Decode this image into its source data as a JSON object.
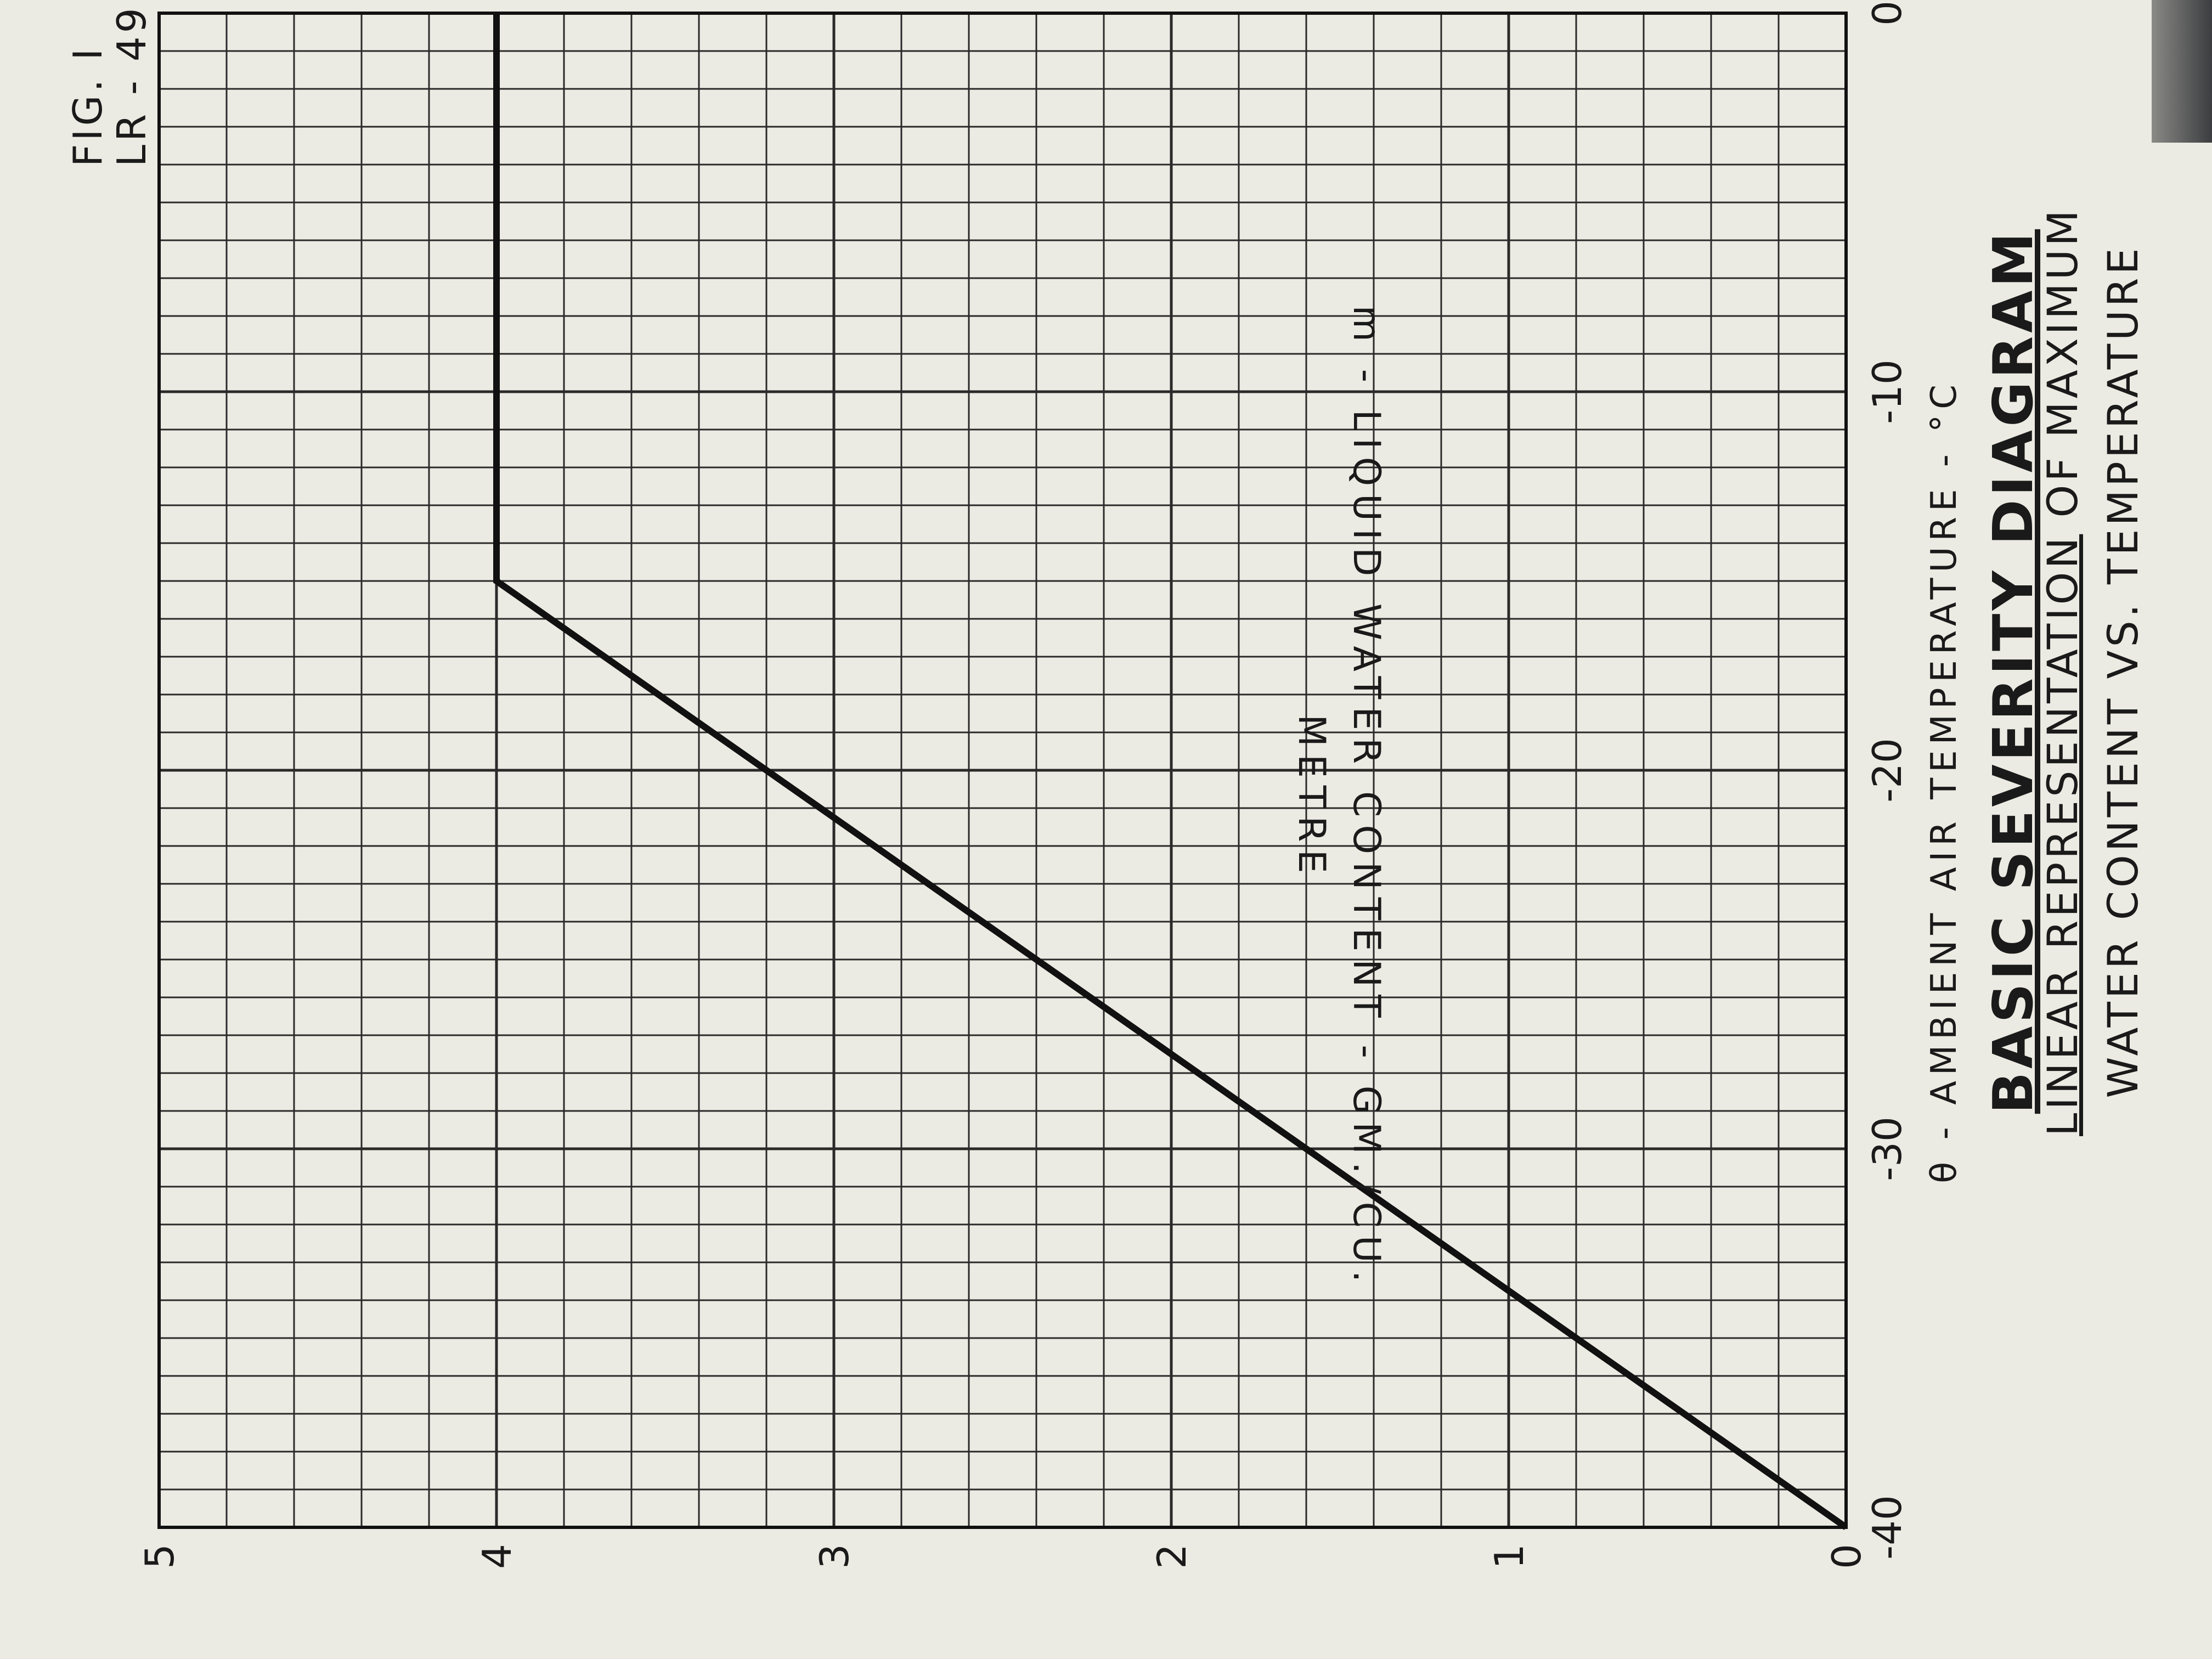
{
  "figure": {
    "fig_number": "FIG. I",
    "report_code": "LR - 49",
    "title": "BASIC SEVERITY DIAGRAM",
    "subtitle_line1_underlined": "LINEAR REPRESENTATION",
    "subtitle_line1_rest": " OF MAXIMUM",
    "subtitle_line2": "WATER CONTENT VS. TEMPERATURE"
  },
  "chart_data": {
    "type": "line",
    "xlabel": "θ - AMBIENT AIR TEMPERATURE - °C",
    "ylabel": "m - LIQUID WATER CONTENT - GM./CU. METRE",
    "xlim": [
      -40,
      0
    ],
    "ylim": [
      0,
      5
    ],
    "x_ticks": [
      -40,
      -30,
      -20,
      -10,
      0
    ],
    "x_tick_labels": [
      "-40",
      "-30",
      "-20",
      "-10",
      "0"
    ],
    "y_ticks": [
      0,
      1,
      2,
      3,
      4,
      5
    ],
    "y_tick_labels": [
      "0",
      "1",
      "2",
      "3",
      "4",
      "5"
    ],
    "grid": true,
    "grid_minor_x_step": 1,
    "grid_minor_y_step": 0.2,
    "series": [
      {
        "x": [
          -40,
          -15,
          0
        ],
        "y": [
          0,
          4,
          4
        ]
      }
    ],
    "colors": {
      "line": "#111111",
      "grid": "#2a2a2a",
      "paper": "#ecebe3"
    }
  }
}
